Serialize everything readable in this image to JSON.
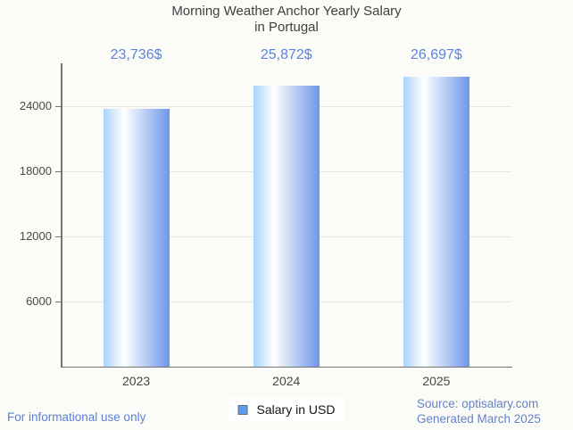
{
  "title": {
    "line1": "Morning Weather Anchor Yearly Salary",
    "line2": "in Portugal"
  },
  "chart_data": {
    "type": "bar",
    "categories": [
      "2023",
      "2024",
      "2025"
    ],
    "series": [
      {
        "name": "Salary in USD",
        "values": [
          23736,
          25872,
          26697
        ]
      }
    ],
    "value_labels": [
      "23,736$",
      "25,872$",
      "26,697$"
    ],
    "title": "Morning Weather Anchor Yearly Salary in Portugal",
    "xlabel": "",
    "ylabel": "",
    "yticks": [
      6000,
      12000,
      18000,
      24000
    ],
    "ylim": [
      0,
      27900
    ],
    "grid": true,
    "legend_position": "bottom-center"
  },
  "legend": {
    "label": "Salary in USD",
    "marker_color": "#5C9CE6",
    "marker_border": "#707070"
  },
  "footer": {
    "disclaimer": "For informational use only",
    "source_line1": "Source: optisalary.com",
    "source_line2": "Generated March 2025"
  },
  "colors": {
    "background": "#FBFBF7",
    "title": "#3F3F3F",
    "axis": "#757575",
    "gridline": "#E6E6E6",
    "tick_label": "#484848",
    "value_label": "#5B84DB",
    "footer_blue": "#5C7FD6",
    "source_blue": "#6582CB",
    "bar_gradient": [
      "#A9D4FA",
      "#FFFFFF",
      "#6D96E9"
    ]
  }
}
